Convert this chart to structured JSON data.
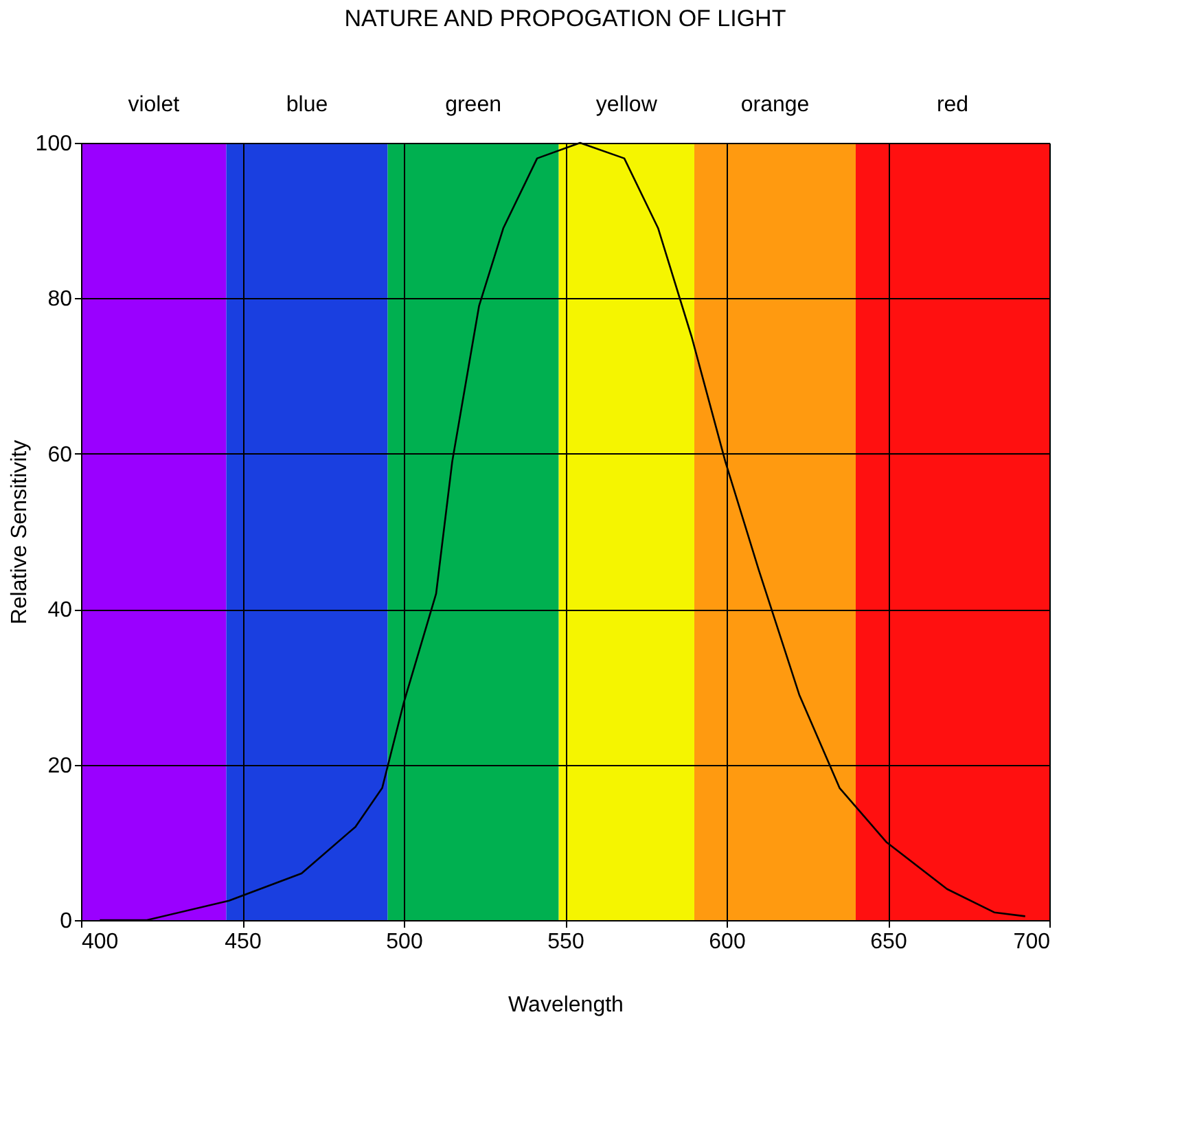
{
  "chart_data": {
    "type": "line",
    "title": "NATURE AND PROPOGATION OF LIGHT",
    "xlabel": "Wavelength",
    "ylabel": "Relative Sensitivity",
    "x": [
      405.8,
      420.4,
      445.8,
      468.3,
      485,
      493.3,
      500,
      510,
      515,
      523.3,
      530.8,
      541.3,
      554.6,
      568.3,
      578.8,
      589.2,
      599.6,
      610,
      622.5,
      635,
      649.6,
      668.3,
      682.9,
      692.5
    ],
    "series": [
      {
        "color": "#000000",
        "values": [
          0,
          0,
          2.5,
          6,
          12,
          17,
          28,
          42,
          59,
          79,
          89,
          98,
          100,
          98,
          89,
          75,
          59,
          45,
          29,
          17,
          10,
          4,
          1,
          0.5
        ]
      }
    ],
    "xlim": [
      400,
      700
    ],
    "xticks": [
      400,
      450,
      500,
      550,
      600,
      650,
      700
    ],
    "ylim": [
      0,
      100
    ],
    "yticks": [
      0,
      20,
      40,
      60,
      80,
      100
    ],
    "grid": true,
    "bands": [
      {
        "axis": "x",
        "from": 400,
        "to": 445,
        "label": "violet",
        "color": "#9a00ff"
      },
      {
        "axis": "x",
        "from": 445,
        "to": 495,
        "label": "blue",
        "color": "#1a3fe0"
      },
      {
        "axis": "x",
        "from": 495,
        "to": 548,
        "label": "green",
        "color": "#00b050"
      },
      {
        "axis": "x",
        "from": 548,
        "to": 590,
        "label": "yellow",
        "color": "#f5f500"
      },
      {
        "axis": "x",
        "from": 590,
        "to": 640,
        "label": "orange",
        "color": "#ff9a10"
      },
      {
        "axis": "x",
        "from": 640,
        "to": 700,
        "label": "red",
        "color": "#ff1010"
      }
    ]
  }
}
